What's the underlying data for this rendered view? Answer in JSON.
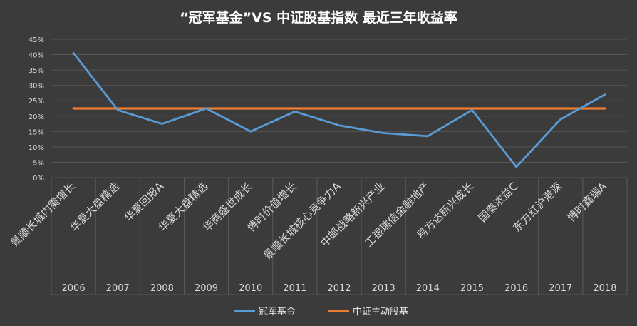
{
  "chart_data": {
    "type": "line",
    "title": "“冠军基金”VS 中证股基指数 最近三年收益率",
    "xlabel": "",
    "ylabel": "",
    "ylim": [
      0,
      45
    ],
    "y_ticks": [
      "0%",
      "5%",
      "10%",
      "15%",
      "20%",
      "25%",
      "30%",
      "35%",
      "40%",
      "45%"
    ],
    "x_years": [
      "2006",
      "2007",
      "2008",
      "2009",
      "2010",
      "2011",
      "2012",
      "2013",
      "2014",
      "2015",
      "2016",
      "2017",
      "2018"
    ],
    "categories": [
      "景顺长城内需增长",
      "华夏大盘精选",
      "华夏回报A",
      "华夏大盘精选",
      "华商盛世成长",
      "博时价值增长",
      "景顺长城核心竞争力A",
      "中邮战略新兴产业",
      "工银瑞信金融地产",
      "易方达新兴成长",
      "国泰浓益C",
      "东方红沪港深",
      "博时鑫瑞A"
    ],
    "series": [
      {
        "name": "冠军基金",
        "color": "#5b9bd5",
        "values": [
          40.5,
          22,
          17.5,
          22.5,
          15,
          21.5,
          17,
          14.5,
          13.5,
          22,
          3.5,
          19,
          27
        ]
      },
      {
        "name": "中证主动股基",
        "color": "#ed7d31",
        "values": [
          22.5,
          22.5,
          22.5,
          22.5,
          22.5,
          22.5,
          22.5,
          22.5,
          22.5,
          22.5,
          22.5,
          22.5,
          22.5
        ]
      }
    ],
    "grid": true,
    "legend_position": "bottom"
  }
}
